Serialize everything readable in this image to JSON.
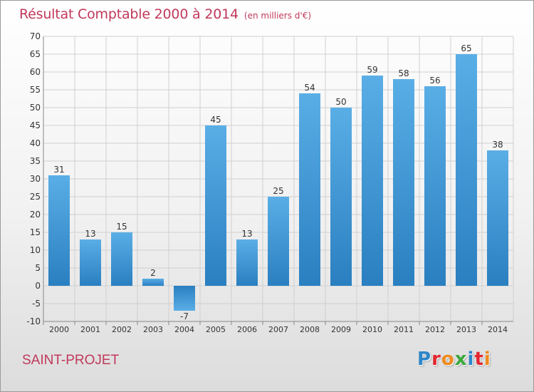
{
  "header": {
    "title": "Résultat Comptable 2000 à 2014",
    "unit": "(en milliers d'€)"
  },
  "footer": {
    "place": "SAINT-PROJET",
    "logo_letters": [
      "P",
      "r",
      "o",
      "x",
      "i",
      "t",
      "i"
    ],
    "logo_colors": [
      "#2b86c9",
      "#e3262f",
      "#f08a1c",
      "#3aa83a",
      "#2b86c9",
      "#e3262f",
      "#f08a1c"
    ]
  },
  "colors": {
    "title": "#c0395b",
    "bar_light": "#5aaee6",
    "bar_dark": "#2a7fc0",
    "grid": "#d0d0d0",
    "axis_text": "#333333"
  },
  "chart_data": {
    "type": "bar",
    "categories": [
      "2000",
      "2001",
      "2002",
      "2003",
      "2004",
      "2005",
      "2006",
      "2007",
      "2008",
      "2009",
      "2010",
      "2011",
      "2012",
      "2013",
      "2014"
    ],
    "values": [
      31,
      13,
      15,
      2,
      -7,
      45,
      13,
      25,
      54,
      50,
      59,
      58,
      56,
      65,
      38
    ],
    "title": "Résultat Comptable 2000 à 2014",
    "xlabel": "",
    "ylabel": "",
    "ylim": [
      -10,
      70
    ],
    "yticks": [
      -10,
      -5,
      0,
      5,
      10,
      15,
      20,
      25,
      30,
      35,
      40,
      45,
      50,
      55,
      60,
      65,
      70
    ],
    "grid": true,
    "data_labels": true
  }
}
